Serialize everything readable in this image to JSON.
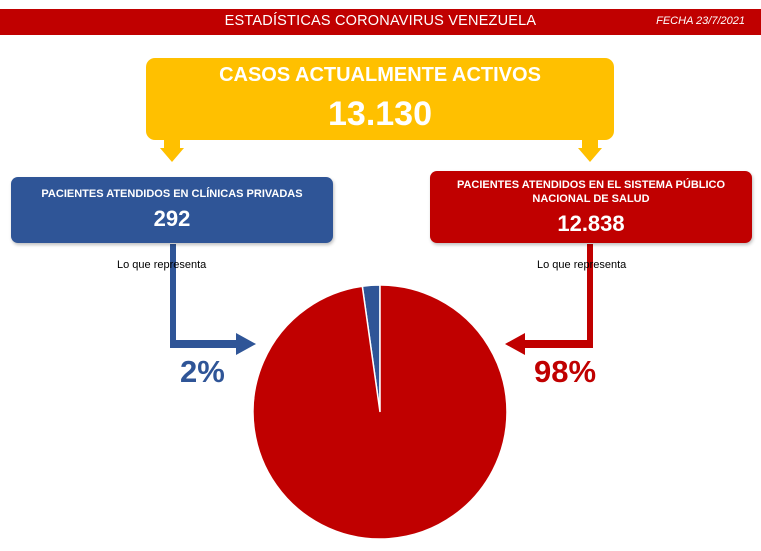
{
  "header": {
    "title": "ESTADÍSTICAS CORONAVIRUS VENEZUELA",
    "date": "FECHA 23/7/2021"
  },
  "active_cases": {
    "label": "CASOS ACTUALMENTE ACTIVOS",
    "value": "13.130"
  },
  "private_clinics": {
    "label": "PACIENTES ATENDIDOS EN CLÍNICAS PRIVADAS",
    "value": "292",
    "caption": "Lo que representa",
    "percent_label": "2%"
  },
  "public_system": {
    "label": "PACIENTES ATENDIDOS EN EL SISTEMA PÚBLICO NACIONAL DE SALUD",
    "value": "12.838",
    "caption": "Lo que representa",
    "percent_label": "98%"
  },
  "colors": {
    "red": "#c00000",
    "blue": "#2f5597",
    "yellow": "#ffc000"
  },
  "chart_data": {
    "type": "pie",
    "categories": [
      "Clínicas privadas",
      "Sistema público nacional de salud"
    ],
    "values": [
      292,
      12838
    ],
    "percent_labels": [
      "2%",
      "98%"
    ],
    "colors": [
      "#2f5597",
      "#c00000"
    ],
    "start_angle": "12 o'clock",
    "direction": "counterclockwise for first slice"
  }
}
